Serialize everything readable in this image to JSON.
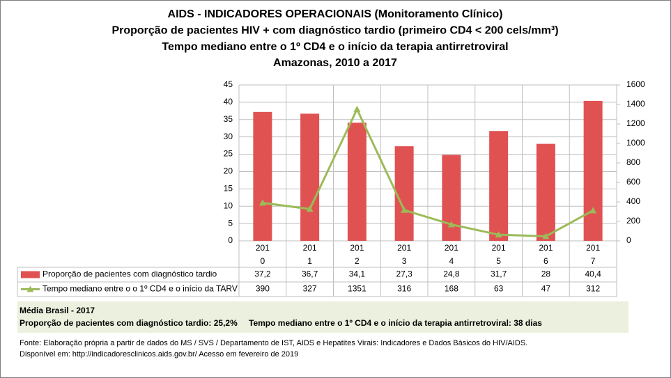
{
  "chart_data": {
    "type": "bar",
    "title": [
      "AIDS - INDICADORES OPERACIONAIS (Monitoramento Clínico)",
      "Proporção de pacientes HIV + com diagnóstico tardio (primeiro CD4 < 200 cels/mm³)",
      "Tempo mediano entre o 1º CD4 e o início da terapia antirretroviral",
      "Amazonas, 2010 a 2017"
    ],
    "categories": [
      "2010",
      "2011",
      "2012",
      "2013",
      "2014",
      "2015",
      "2016",
      "2017"
    ],
    "series": [
      {
        "name": "Proporção de pacientes com diagnóstico tardio",
        "type": "bar",
        "color": "#e05252",
        "values": [
          37.2,
          36.7,
          34.1,
          27.3,
          24.8,
          31.7,
          28,
          40.4
        ],
        "value_labels": [
          "37,2",
          "36,7",
          "34,1",
          "27,3",
          "24,8",
          "31,7",
          "28",
          "40,4"
        ]
      },
      {
        "name": "Tempo mediano entre o o 1º CD4 e o início da TARV",
        "type": "line",
        "axis": "y2",
        "color": "#9bbb59",
        "values": [
          390,
          327,
          1351,
          316,
          168,
          63,
          47,
          312
        ]
      }
    ],
    "ylim": [
      0,
      45
    ],
    "yticks": [
      0,
      5,
      10,
      15,
      20,
      25,
      30,
      35,
      40,
      45
    ],
    "y2lim": [
      0,
      1600
    ],
    "y2ticks": [
      0,
      200,
      400,
      600,
      800,
      1000,
      1200,
      1400,
      1600
    ],
    "grid": true
  },
  "summary": {
    "title": "Média Brasil - 2017",
    "lines": [
      "Proporção de pacientes com diagnóstico  tardio: 25,2%",
      "Tempo mediano entre o 1º CD4 e o início da terapia antirretroviral: 38 dias"
    ]
  },
  "footer": [
    "Fonte: Elaboração própria a partir de dados do  MS / SVS / Departamento de IST, AIDS e Hepatites Virais: Indicadores e Dados Básicos do HIV/AIDS.",
    "Disponível em: http://indicadoresclinicos.aids.gov.br/ Acesso em fevereiro de 2019"
  ]
}
